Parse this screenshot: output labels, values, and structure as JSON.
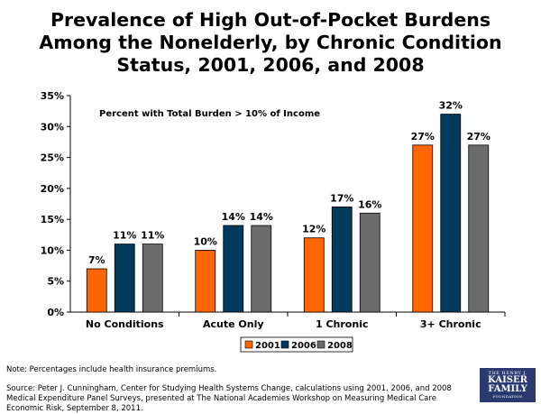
{
  "title_lines": [
    "Prevalence of High Out-of-Pocket Burdens",
    "Among the Nonelderly, by Chronic Condition",
    "Status, 2001, 2006, and 2008"
  ],
  "note": "Note: Percentages include health insurance premiums.",
  "source": "Source: Peter J. Cunningham, Center for Studying Health Systems Change, calculations using 2001, 2006, and 2008 Medical Expenditure Panel Surveys, presented at The National Academies Workshop on Measuring Medical Care Economic Risk, September 8, 2011.",
  "logo": {
    "line1": "THE HENRY J.",
    "line2": "KAISER",
    "line3": "FAMILY",
    "line4": "FOUNDATION",
    "color": "#2a3a70"
  },
  "chart_data": {
    "type": "bar",
    "annotation": "Percent with Total Burden > 10% of Income",
    "categories": [
      "No Conditions",
      "Acute Only",
      "1 Chronic",
      "3+ Chronic"
    ],
    "series": [
      {
        "name": "2001",
        "values": [
          7,
          10,
          12,
          27
        ],
        "color": "#ff6600"
      },
      {
        "name": "2006",
        "values": [
          11,
          14,
          17,
          32
        ],
        "color": "#003a5c"
      },
      {
        "name": "2008",
        "values": [
          11,
          14,
          16,
          27
        ],
        "color": "#6b6b6b"
      }
    ],
    "ylim": [
      0,
      35
    ],
    "yticks": [
      0,
      5,
      10,
      15,
      20,
      25,
      30,
      35
    ],
    "ytick_labels": [
      "0%",
      "5%",
      "10%",
      "15%",
      "20%",
      "25%",
      "30%",
      "35%"
    ],
    "value_suffix": "%",
    "legend_position": "bottom-center",
    "grid": false
  }
}
